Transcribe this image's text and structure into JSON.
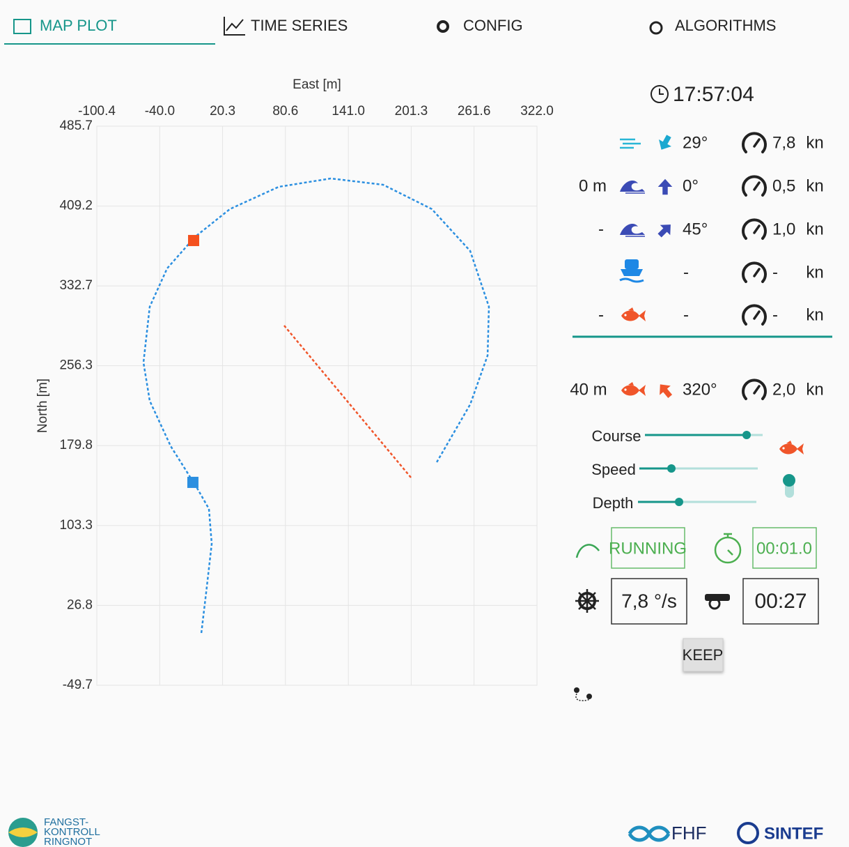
{
  "tabs": [
    "MAP PLOT",
    "TIME SERIES",
    "CONFIG",
    "ALGORITHMS"
  ],
  "chart_data": {
    "type": "line",
    "xlabel": "East [m]",
    "ylabel": "North [m]",
    "xlim": [
      -100.4,
      322.0
    ],
    "ylim": [
      -49.7,
      485.7
    ],
    "xticks": [
      -100.4,
      {
        "value": -40.0,
        "label": "-40.0"
      },
      20.3,
      80.6,
      {
        "value": 141.0,
        "label": "141.0"
      },
      201.3,
      261.6,
      {
        "value": 322.0,
        "label": "322.0"
      }
    ],
    "yticks": [
      485.7,
      409.2,
      332.7,
      256.3,
      179.8,
      103.3,
      26.8,
      -49.7
    ],
    "grid": true,
    "series": [
      {
        "color": "#2b8fe0",
        "style": "dashed",
        "x": [
          -0.1,
          4.5,
          9.9,
          7.2,
          -4.2,
          -29.5,
          -49.6,
          -55.6,
          -49.6,
          -32.9,
          -6.2,
          27.3,
          74.1,
          124.2,
          174.3,
          221.1,
          257.9,
          275.9,
          274.6,
          257.9,
          225.8
        ],
        "values": [
          0.4,
          39.1,
          85.8,
          119.2,
          139.2,
          179.3,
          222.7,
          259.4,
          312.8,
          349.5,
          379.6,
          406.3,
          427.6,
          435.6,
          429.6,
          406.3,
          366.2,
          312.8,
          266.1,
          219.3,
          163.9
        ]
      },
      {
        "color": "#f0552a",
        "style": "dashed",
        "x": [
          79.4,
          201.1
        ],
        "values": [
          294.8,
          149.2
        ]
      },
      {
        "color": "#2b8fe0",
        "marker": "square",
        "x": [
          -8.2
        ],
        "values": [
          144.6
        ]
      },
      {
        "color": "#f4511e",
        "marker": "square",
        "x": [
          -7.5
        ],
        "values": [
          376.2
        ]
      }
    ]
  },
  "clock": "17:57:04",
  "env_rows": [
    {
      "direction": "29°",
      "speed": "7,8",
      "unit": "kn"
    },
    {
      "depth": "0 m",
      "direction": "0°",
      "speed": "0,5",
      "unit": "kn"
    },
    {
      "depth": "-",
      "direction": "45°",
      "speed": "1,0",
      "unit": "kn"
    },
    {
      "direction": "-",
      "speed": "-",
      "unit": "kn"
    },
    {
      "depth": "-",
      "direction": "-",
      "speed": "-",
      "unit": "kn"
    }
  ],
  "target": {
    "depth": "40 m",
    "direction": "320°",
    "speed": "2,0",
    "unit": "kn"
  },
  "sliders": [
    "Course",
    "Speed",
    "Depth"
  ],
  "status": "RUNNING",
  "elapsed": "00:01.0",
  "turn_rate": "7,8 °/s",
  "countdown": "00:27",
  "keep_button": "KEEP",
  "logos": {
    "left": [
      "FANGST-",
      "KONTROLL",
      "RINGNOT"
    ],
    "fhf": "FHF",
    "sintef": "SINTEF"
  }
}
